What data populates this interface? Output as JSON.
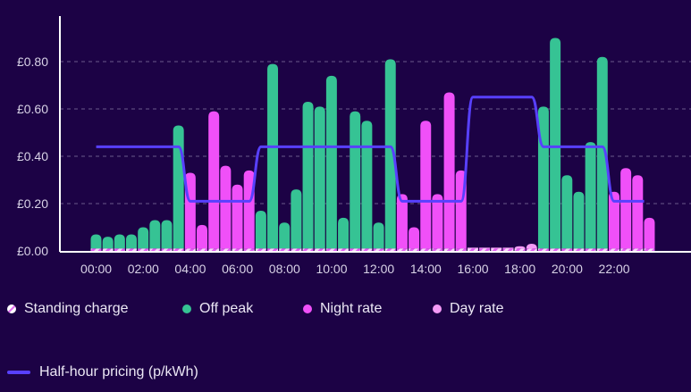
{
  "chart_data": {
    "type": "bar",
    "title": "",
    "xlabel": "",
    "ylabel": "",
    "ylim": [
      0,
      0.9
    ],
    "y_ticks": [
      "£0.00",
      "£0.20",
      "£0.40",
      "£0.60",
      "£0.80"
    ],
    "y_tick_values": [
      0,
      0.2,
      0.4,
      0.6,
      0.8
    ],
    "x_ticks": [
      "00:00",
      "02:00",
      "04:00",
      "06:00",
      "08:00",
      "10:00",
      "12:00",
      "14:00",
      "16:00",
      "18:00",
      "20:00",
      "22:00"
    ],
    "grid": true,
    "slots_per_day": 48,
    "standing_charge_per_slot": 0.01,
    "values": [
      0.07,
      0.06,
      0.07,
      0.07,
      0.1,
      0.13,
      0.13,
      0.53,
      0.33,
      0.11,
      0.59,
      0.36,
      0.28,
      0.34,
      0.17,
      0.79,
      0.12,
      0.26,
      0.63,
      0.61,
      0.74,
      0.14,
      0.59,
      0.55,
      0.12,
      0.81,
      0.24,
      0.1,
      0.55,
      0.24,
      0.67,
      0.34,
      0.01,
      0.01,
      0.01,
      0.01,
      0.02,
      0.03,
      0.61,
      0.9,
      0.32,
      0.25,
      0.46,
      0.82,
      0.25,
      0.35,
      0.32,
      0.14
    ],
    "rates": [
      "off",
      "off",
      "off",
      "off",
      "off",
      "off",
      "off",
      "off",
      "night",
      "night",
      "night",
      "night",
      "night",
      "night",
      "off",
      "off",
      "off",
      "off",
      "off",
      "off",
      "off",
      "off",
      "off",
      "off",
      "off",
      "off",
      "night",
      "night",
      "night",
      "night",
      "night",
      "night",
      "day",
      "day",
      "day",
      "day",
      "day",
      "day",
      "off",
      "off",
      "off",
      "off",
      "off",
      "off",
      "night",
      "night",
      "night",
      "night"
    ],
    "pricing_line": {
      "name": "Half-hour pricing (p/kWh)",
      "values": [
        0.44,
        0.44,
        0.44,
        0.44,
        0.44,
        0.44,
        0.44,
        0.44,
        0.21,
        0.21,
        0.21,
        0.21,
        0.21,
        0.21,
        0.44,
        0.44,
        0.44,
        0.44,
        0.44,
        0.44,
        0.44,
        0.44,
        0.44,
        0.44,
        0.44,
        0.44,
        0.21,
        0.21,
        0.21,
        0.21,
        0.21,
        0.21,
        0.65,
        0.65,
        0.65,
        0.65,
        0.65,
        0.65,
        0.44,
        0.44,
        0.44,
        0.44,
        0.44,
        0.44,
        0.21,
        0.21,
        0.21,
        0.21
      ]
    },
    "legend": [
      {
        "key": "standing",
        "label": "Standing charge",
        "color": "#f7d6fa"
      },
      {
        "key": "off",
        "label": "Off peak",
        "color": "#36c394"
      },
      {
        "key": "night",
        "label": "Night rate",
        "color": "#f050f8"
      },
      {
        "key": "day",
        "label": "Day rate",
        "color": "#f49af6"
      }
    ],
    "line_color": "#5840ff",
    "legend_placement": "bottom"
  }
}
